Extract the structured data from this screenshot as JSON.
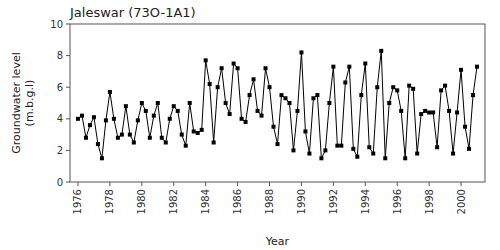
{
  "chart_data": {
    "type": "line",
    "title": "Jaleswar (73O-1A1)",
    "xlabel": "Year",
    "ylabel": "Groundwater level\n(m.b.g.l)",
    "xlim": [
      1975.5,
      2001.5
    ],
    "ylim": [
      0,
      10
    ],
    "xticks": [
      1976,
      1978,
      1980,
      1982,
      1984,
      1986,
      1988,
      1990,
      1992,
      1994,
      1996,
      1998,
      2000
    ],
    "yticks": [
      0,
      2,
      4,
      6,
      8,
      10
    ],
    "x": [
      1976.0,
      1976.25,
      1976.5,
      1976.75,
      1977.0,
      1977.25,
      1977.5,
      1977.75,
      1978.0,
      1978.25,
      1978.5,
      1978.75,
      1979.0,
      1979.25,
      1979.5,
      1979.75,
      1980.0,
      1980.25,
      1980.5,
      1980.75,
      1981.0,
      1981.25,
      1981.5,
      1981.75,
      1982.0,
      1982.25,
      1982.5,
      1982.75,
      1983.0,
      1983.25,
      1983.5,
      1983.75,
      1984.0,
      1984.25,
      1984.5,
      1984.75,
      1985.0,
      1985.25,
      1985.5,
      1985.75,
      1986.0,
      1986.25,
      1986.5,
      1986.75,
      1987.0,
      1987.25,
      1987.5,
      1987.75,
      1988.0,
      1988.25,
      1988.5,
      1988.75,
      1989.0,
      1989.25,
      1989.5,
      1989.75,
      1990.0,
      1990.25,
      1990.5,
      1990.75,
      1991.0,
      1991.25,
      1991.5,
      1991.75,
      1992.0,
      1992.25,
      1992.5,
      1992.75,
      1993.0,
      1993.25,
      1993.5,
      1993.75,
      1994.0,
      1994.25,
      1994.5,
      1994.75,
      1995.0,
      1995.25,
      1995.5,
      1995.75,
      1996.0,
      1996.25,
      1996.5,
      1996.75,
      1997.0,
      1997.25,
      1997.5,
      1997.75,
      1998.0,
      1998.25,
      1998.5,
      1998.75,
      1999.0,
      1999.25,
      1999.5,
      1999.75,
      2000.0,
      2000.25,
      2000.5,
      2000.75,
      2001.0
    ],
    "values": [
      4.0,
      4.2,
      2.8,
      3.6,
      4.1,
      2.4,
      1.5,
      3.9,
      5.7,
      4.0,
      2.8,
      3.0,
      4.8,
      3.0,
      2.5,
      3.9,
      5.0,
      4.5,
      2.8,
      4.2,
      5.0,
      2.8,
      2.5,
      4.0,
      4.8,
      4.5,
      3.0,
      2.3,
      5.0,
      3.2,
      3.1,
      3.3,
      7.7,
      6.2,
      2.5,
      6.0,
      7.2,
      5.0,
      4.3,
      7.5,
      7.2,
      4.0,
      3.8,
      5.5,
      6.5,
      4.5,
      4.2,
      7.2,
      6.0,
      3.5,
      2.4,
      5.5,
      5.3,
      5.0,
      2.0,
      4.5,
      8.2,
      3.2,
      1.8,
      5.3,
      5.5,
      1.5,
      2.0,
      5.0,
      7.3,
      2.3,
      2.3,
      6.3,
      7.3,
      2.1,
      1.6,
      5.5,
      7.5,
      2.2,
      1.8,
      6.0,
      8.3,
      1.5,
      5.0,
      6.0,
      5.8,
      4.5,
      1.5,
      6.1,
      5.9,
      1.8,
      4.3,
      4.5,
      4.4,
      4.4,
      2.2,
      5.8,
      6.1,
      4.5,
      1.8,
      4.4,
      7.1,
      3.5,
      2.1,
      5.5,
      7.3
    ],
    "color": "#000000",
    "marker": "square",
    "grid": false
  }
}
